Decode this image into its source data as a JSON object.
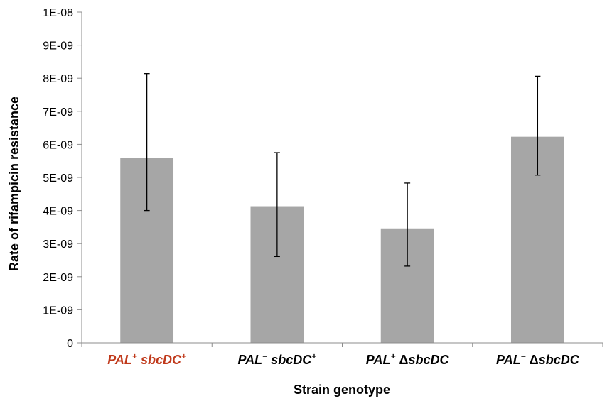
{
  "chart_data": {
    "type": "bar",
    "title": "",
    "xlabel": "Strain genotype",
    "ylabel": "Rate of rifampicin resistance",
    "ylim": [
      0,
      1e-08
    ],
    "y_ticks": [
      "0",
      "1E-09",
      "2E-09",
      "3E-09",
      "4E-09",
      "5E-09",
      "6E-09",
      "7E-09",
      "8E-09",
      "9E-09",
      "1E-08"
    ],
    "categories": [
      {
        "base": "PAL",
        "sup1": "+",
        "gene": "sbcDC",
        "sup2": "+",
        "delta": "",
        "color": "#c0391b"
      },
      {
        "base": "PAL",
        "sup1": "−",
        "gene": "sbcDC",
        "sup2": "+",
        "delta": "",
        "color": "#000000"
      },
      {
        "base": "PAL",
        "sup1": "+",
        "gene": "sbcDC",
        "sup2": "",
        "delta": "Δ",
        "color": "#000000"
      },
      {
        "base": "PAL",
        "sup1": "−",
        "gene": "sbcDC",
        "sup2": "",
        "delta": "Δ",
        "color": "#000000"
      }
    ],
    "values": [
      5.6e-09,
      4.13e-09,
      3.46e-09,
      6.23e-09
    ],
    "error_upper": [
      8.14e-09,
      5.75e-09,
      4.83e-09,
      8.06e-09
    ],
    "error_lower": [
      4e-09,
      2.61e-09,
      2.32e-09,
      5.07e-09
    ],
    "bar_color": "#a6a6a6",
    "grid": false,
    "legend": "none"
  }
}
